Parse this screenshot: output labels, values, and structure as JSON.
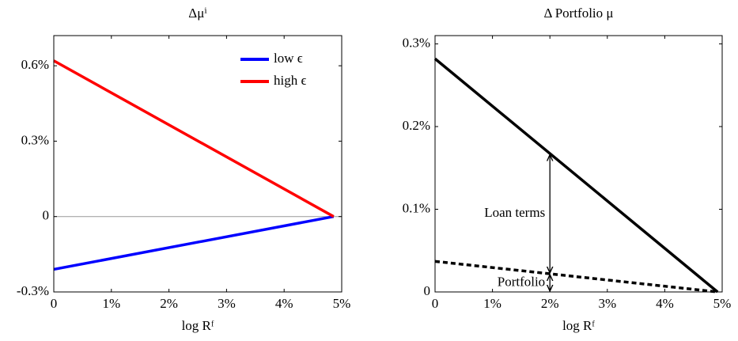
{
  "chart_data": [
    {
      "type": "line",
      "title": "Δμⁱ",
      "x_label": "log Rᶠ",
      "x": [
        0,
        4.86
      ],
      "series": [
        {
          "name": "low ϵ",
          "color": "#0000ff",
          "values": [
            -0.21,
            0
          ]
        },
        {
          "name": "high ϵ",
          "color": "#ff0000",
          "values": [
            0.62,
            0
          ]
        }
      ],
      "xlim": [
        0,
        5
      ],
      "ylim": [
        -0.3,
        0.72
      ],
      "xticks": [
        0,
        {
          "value": 1,
          "label": "1%"
        },
        {
          "value": 2,
          "label": "2%"
        },
        {
          "value": 3,
          "label": "3%"
        },
        {
          "value": 4,
          "label": "4%"
        },
        {
          "value": 5,
          "label": "5%"
        }
      ],
      "yticks": [
        {
          "value": -0.3,
          "label": "-0.3%"
        },
        0,
        {
          "value": 0.3,
          "label": "0.3%"
        },
        {
          "value": 0.6,
          "label": "0.6%"
        }
      ],
      "zero_line": true,
      "legend": "upper right"
    },
    {
      "type": "line",
      "title": "Δ Portfolio μ",
      "x_label": "log Rᶠ",
      "x": [
        0,
        4.92
      ],
      "series": [
        {
          "color": "#000000",
          "values": [
            0.282,
            0
          ],
          "style": "solid"
        },
        {
          "color": "#000000",
          "values": [
            0.037,
            0
          ],
          "style": "dotted"
        }
      ],
      "xlim": [
        0,
        5
      ],
      "ylim": [
        0,
        0.31
      ],
      "xticks": [
        0,
        {
          "value": 1,
          "label": "1%"
        },
        {
          "value": 2,
          "label": "2%"
        },
        {
          "value": 3,
          "label": "3%"
        },
        {
          "value": 4,
          "label": "4%"
        },
        {
          "value": 5,
          "label": "5%"
        }
      ],
      "yticks": [
        0,
        {
          "value": 0.1,
          "label": "0.1%"
        },
        {
          "value": 0.2,
          "label": "0.2%"
        },
        {
          "value": 0.3,
          "label": "0.3%"
        }
      ],
      "annotations": [
        {
          "text": "Loan terms",
          "x": 2,
          "y": [
            0.022,
            0.167
          ]
        },
        {
          "text": "Portfolio",
          "x": 2,
          "y": [
            0,
            0.022
          ]
        }
      ]
    }
  ]
}
